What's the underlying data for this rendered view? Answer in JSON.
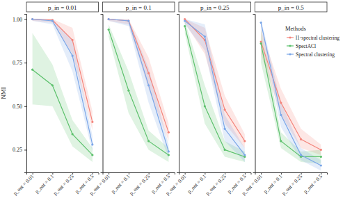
{
  "chart_data": [
    {
      "type": "line",
      "title": "p_in = 0.01",
      "y_label": "NMI",
      "categories": [
        "p_out = 0.01",
        "p_out = 0.1",
        "p_out = 0.25",
        "p_out = 0.5"
      ],
      "ylim": [
        0.12,
        1.03
      ],
      "yticks": [
        0.25,
        {
          "value": 0.5,
          "label": "0.50"
        },
        0.75,
        {
          "value": 1.0,
          "label": "1.00"
        }
      ],
      "grid": false,
      "series": [
        {
          "name": "l1-spectral clustering",
          "color": "#f4857c",
          "marker": "circle",
          "values": [
            1.0,
            0.995,
            0.88,
            0.41
          ],
          "lower": [
            0.99,
            0.98,
            0.8,
            0.36
          ],
          "upper": [
            1.0,
            1.0,
            0.95,
            0.47
          ]
        },
        {
          "name": "SpectACl",
          "color": "#5dc16d",
          "marker": "circle",
          "values": [
            0.71,
            0.62,
            0.34,
            0.22
          ],
          "lower": [
            0.51,
            0.5,
            0.27,
            0.18
          ],
          "upper": [
            0.92,
            0.74,
            0.42,
            0.26
          ]
        },
        {
          "name": "Spectral clustering",
          "color": "#7aa6e8",
          "marker": "circle",
          "values": [
            1.0,
            0.99,
            0.79,
            0.28
          ],
          "lower": [
            0.99,
            0.97,
            0.7,
            0.24
          ],
          "upper": [
            1.0,
            1.0,
            0.88,
            0.33
          ]
        }
      ]
    },
    {
      "type": "line",
      "title": "p_in = 0.1",
      "tick_labels": "x",
      "categories": [
        "p_out = 0.01",
        "p_out = 0.1",
        "p_out = 0.25",
        "p_out = 0.5"
      ],
      "ylim": [
        0.12,
        1.03
      ],
      "grid": false,
      "series": [
        {
          "name": "l1-spectral clustering",
          "color": "#f4857c",
          "marker": "circle",
          "values": [
            1.0,
            0.99,
            0.69,
            0.35
          ],
          "lower": [
            0.99,
            0.97,
            0.6,
            0.3
          ],
          "upper": [
            1.0,
            1.0,
            0.78,
            0.4
          ]
        },
        {
          "name": "SpectACl",
          "color": "#5dc16d",
          "marker": "circle",
          "values": [
            0.94,
            0.59,
            0.3,
            0.22
          ],
          "lower": [
            0.9,
            0.46,
            0.25,
            0.18
          ],
          "upper": [
            0.97,
            0.7,
            0.36,
            0.26
          ]
        },
        {
          "name": "Spectral clustering",
          "color": "#7aa6e8",
          "marker": "circle",
          "values": [
            1.0,
            0.99,
            0.62,
            0.24
          ],
          "lower": [
            0.99,
            0.96,
            0.52,
            0.2
          ],
          "upper": [
            1.0,
            1.0,
            0.72,
            0.28
          ]
        }
      ]
    },
    {
      "type": "line",
      "title": "p_in = 0.25",
      "tick_labels": "x",
      "categories": [
        "p_out = 0.01",
        "p_out = 0.1",
        "p_out = 0.25",
        "p_out = 0.5"
      ],
      "ylim": [
        0.12,
        1.03
      ],
      "grid": false,
      "series": [
        {
          "name": "l1-spectral clustering",
          "color": "#f4857c",
          "marker": "circle",
          "values": [
            1.0,
            0.88,
            0.48,
            0.3
          ],
          "lower": [
            0.98,
            0.8,
            0.4,
            0.26
          ],
          "upper": [
            1.0,
            0.95,
            0.56,
            0.34
          ]
        },
        {
          "name": "SpectACl",
          "color": "#5dc16d",
          "marker": "circle",
          "values": [
            0.96,
            0.5,
            0.25,
            0.21
          ],
          "lower": [
            0.92,
            0.4,
            0.21,
            0.18
          ],
          "upper": [
            0.99,
            0.62,
            0.3,
            0.24
          ]
        },
        {
          "name": "Spectral clustering",
          "color": "#7aa6e8",
          "marker": "circle",
          "values": [
            0.99,
            0.9,
            0.37,
            0.22
          ],
          "lower": [
            0.97,
            0.82,
            0.3,
            0.18
          ],
          "upper": [
            1.0,
            0.97,
            0.45,
            0.26
          ]
        }
      ]
    },
    {
      "type": "line",
      "title": "p_in = 0.5",
      "tick_labels": "x",
      "categories": [
        "p_out = 0.01",
        "p_out = 0.1",
        "p_out = 0.25",
        "p_out = 0.5"
      ],
      "ylim": [
        0.12,
        1.03
      ],
      "grid": false,
      "legend": "right",
      "legend_title": "Methods",
      "series": [
        {
          "name": "l1-spectral clustering",
          "color": "#f4857c",
          "marker": "circle",
          "values": [
            0.87,
            0.52,
            0.31,
            0.25
          ],
          "lower": [
            0.8,
            0.45,
            0.26,
            0.22
          ],
          "upper": [
            0.94,
            0.6,
            0.37,
            0.28
          ]
        },
        {
          "name": "SpectACl",
          "color": "#5dc16d",
          "marker": "circle",
          "values": [
            0.86,
            0.3,
            0.21,
            0.21
          ],
          "lower": [
            0.75,
            0.26,
            0.18,
            0.17
          ],
          "upper": [
            0.94,
            0.35,
            0.24,
            0.25
          ]
        },
        {
          "name": "Spectral clustering",
          "color": "#7aa6e8",
          "marker": "circle",
          "values": [
            0.98,
            0.45,
            0.22,
            0.16
          ],
          "lower": [
            0.94,
            0.38,
            0.19,
            0.13
          ],
          "upper": [
            1.0,
            0.52,
            0.26,
            0.19
          ]
        }
      ]
    }
  ]
}
